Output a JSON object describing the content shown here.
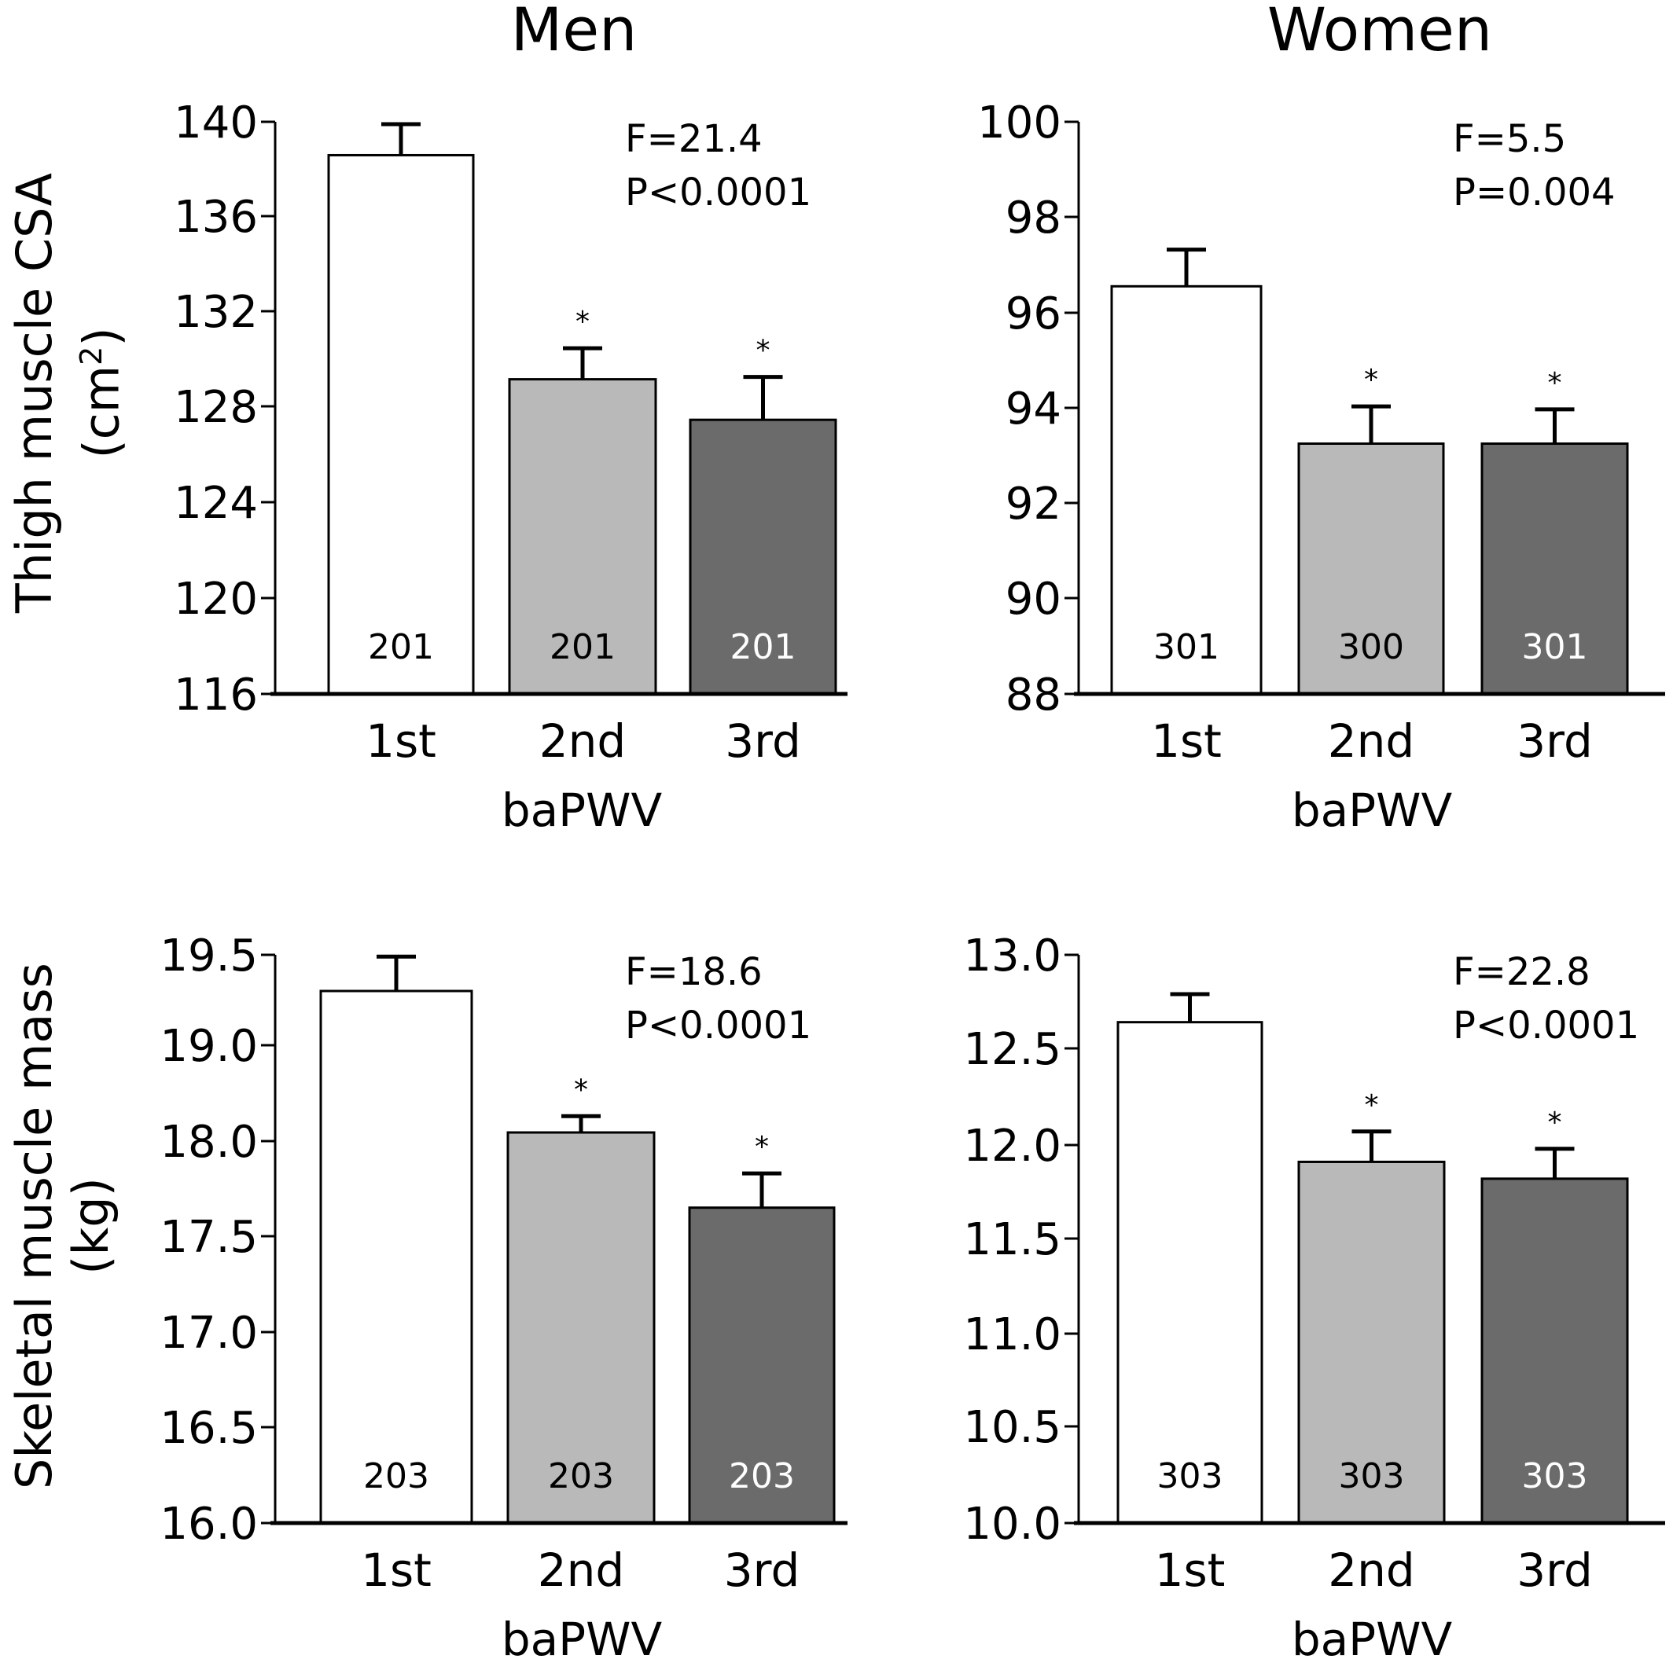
{
  "columns": {
    "men": "Men",
    "women": "Women"
  },
  "rows": {
    "top": {
      "ylabel_line1": "Thigh muscle CSA",
      "ylabel_line2_pre": "(cm",
      "ylabel_line2_sup": "2",
      "ylabel_line2_post": ")"
    },
    "bottom": {
      "ylabel_line1": "Skeletal muscle mass",
      "ylabel_line2_pre": "(kg)",
      "ylabel_line2_sup": "",
      "ylabel_line2_post": ""
    }
  },
  "colors": {
    "1st": "#ffffff",
    "2nd": "#b9b9b9",
    "3rd": "#6b6b6b",
    "axis": "#000000"
  },
  "chart_data": [
    {
      "type": "bar",
      "panel": "men-thigh",
      "xlabel": "baPWV",
      "categories": [
        "1st",
        "2nd",
        "3rd"
      ],
      "values": [
        138.6,
        129.2,
        127.5
      ],
      "errors": [
        1.3,
        1.3,
        1.8
      ],
      "n": [
        "201",
        "201",
        "201"
      ],
      "significance": [
        "",
        "*",
        "*"
      ],
      "ylim": [
        116,
        140
      ],
      "yticks": [
        "116",
        "120",
        "124",
        "128",
        "132",
        "136",
        "140"
      ],
      "stats": [
        "F=21.4",
        "P<0.0001"
      ]
    },
    {
      "type": "bar",
      "panel": "women-thigh",
      "xlabel": "baPWV",
      "categories": [
        "1st",
        "2nd",
        "3rd"
      ],
      "values": [
        96.55,
        93.25,
        93.25
      ],
      "errors": [
        0.77,
        0.78,
        0.72
      ],
      "n": [
        "301",
        "300",
        "301"
      ],
      "significance": [
        "",
        "*",
        "*"
      ],
      "ylim": [
        88,
        100
      ],
      "yticks": [
        "88",
        "90",
        "92",
        "94",
        "96",
        "98",
        "100"
      ],
      "stats": [
        "F=5.5",
        "P=0.004"
      ]
    },
    {
      "type": "bar",
      "panel": "men-skeletal",
      "xlabel": "baPWV",
      "categories": [
        "1st",
        "2nd",
        "3rd"
      ],
      "values": [
        19.3,
        18.09,
        17.65
      ],
      "errors": [
        0.19,
        0.17,
        0.18
      ],
      "n": [
        "203",
        "203",
        "203"
      ],
      "significance": [
        "",
        "*",
        "*"
      ],
      "ylim": [
        16.0,
        19.5
      ],
      "yticks": [
        "16.0",
        "16.5",
        "17.0",
        "17.5",
        "18.0",
        "19.0",
        "19.5"
      ],
      "stats": [
        "F=18.6",
        "P<0.0001"
      ]
    },
    {
      "type": "bar",
      "panel": "women-skeletal",
      "xlabel": "baPWV",
      "categories": [
        "1st",
        "2nd",
        "3rd"
      ],
      "values": [
        12.64,
        11.91,
        11.82
      ],
      "errors": [
        0.15,
        0.16,
        0.16
      ],
      "n": [
        "303",
        "303",
        "303"
      ],
      "significance": [
        "",
        "*",
        "*"
      ],
      "ylim": [
        10.0,
        13.0
      ],
      "yticks": [
        "10.0",
        "10.5",
        "11.0",
        "11.5",
        "12.0",
        "12.5",
        "13.0"
      ],
      "stats": [
        "F=22.8",
        "P<0.0001"
      ]
    }
  ]
}
